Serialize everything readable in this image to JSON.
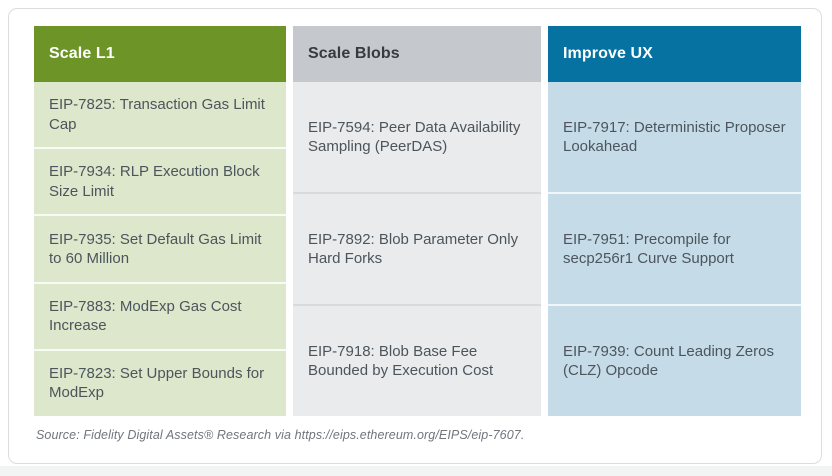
{
  "chart_data": {
    "type": "table",
    "columns": [
      {
        "header": "Scale L1",
        "items": [
          "EIP-7825: Transaction Gas Limit Cap",
          "EIP-7934: RLP Execution Block Size Limit",
          "EIP-7935: Set Default Gas Limit to 60 Million",
          "EIP-7883: ModExp Gas Cost Increase",
          "EIP-7823: Set Upper Bounds for ModExp"
        ]
      },
      {
        "header": "Scale Blobs",
        "items": [
          "EIP-7594: Peer Data Availability Sampling (PeerDAS)",
          "EIP-7892: Blob Parameter Only Hard Forks",
          "EIP-7918: Blob Base Fee Bounded by Execution Cost"
        ]
      },
      {
        "header": "Improve UX",
        "items": [
          "EIP-7917: Deterministic Proposer Lookahead",
          "EIP-7951: Precompile for secp256r1 Curve Support",
          "EIP-7939: Count Leading Zeros (CLZ) Opcode"
        ]
      }
    ],
    "source": "Source: Fidelity Digital Assets® Research via https://eips.ethereum.org/EIPS/eip-7607."
  },
  "colors": {
    "header_bg": [
      "#6d9426",
      "#c5c9cd",
      "#0572a1"
    ],
    "header_text": [
      "#ffffff",
      "#343b41",
      "#ffffff"
    ],
    "cell_bg": [
      "#dde7cb",
      "#e9ebed",
      "#c5dce8"
    ],
    "separator": [
      "rgba(255,255,255,0.8)",
      "#d8dadd",
      "rgba(255,255,255,0.75)"
    ]
  }
}
